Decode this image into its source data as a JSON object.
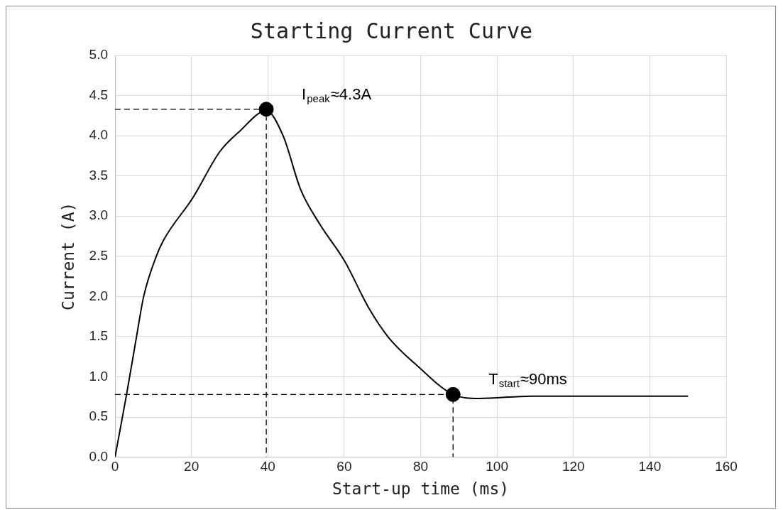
{
  "chart_data": {
    "type": "line",
    "title": "Starting Current Curve",
    "xlabel": "Start-up time (ms)",
    "ylabel": "Current (A)",
    "xlim": [
      0,
      160
    ],
    "xticks": [
      0,
      20,
      40,
      60,
      80,
      100,
      120,
      140,
      160
    ],
    "ylim": [
      0,
      5
    ],
    "yticks": [
      {
        "value": 0,
        "label": "0.0"
      },
      {
        "value": 0.5,
        "label": "0.5"
      },
      {
        "value": 1,
        "label": "1.0"
      },
      {
        "value": 1.5,
        "label": "1.5"
      },
      {
        "value": 2,
        "label": "2.0"
      },
      {
        "value": 2.5,
        "label": "2.5"
      },
      {
        "value": 3,
        "label": "3.0"
      },
      {
        "value": 3.5,
        "label": "3.5"
      },
      {
        "value": 4,
        "label": "4.0"
      },
      {
        "value": 4.5,
        "label": "4.5"
      },
      {
        "value": 5,
        "label": "5.0"
      }
    ],
    "grid": true,
    "legend": false,
    "marker": "none",
    "line_style": "solid",
    "series": [
      {
        "color": "#000000",
        "x": [
          0,
          3.1,
          5.6,
          7.5,
          10.8,
          12.7,
          20.4,
          27.4,
          32.5,
          39.6,
          44,
          48.6,
          53.6,
          60.1,
          66.5,
          71.6,
          79.3,
          88.5,
          95.3,
          109,
          150
        ],
        "values": [
          0,
          0.8,
          1.49,
          2.0,
          2.5,
          2.7,
          3.23,
          3.8,
          4.05,
          4.31,
          4.0,
          3.33,
          2.9,
          2.44,
          1.85,
          1.49,
          1.13,
          0.78,
          0.73,
          0.76,
          0.76
        ]
      },
      {
        "line_style": "dashed",
        "color": "#000000",
        "x": [
          0,
          39.6,
          39.6
        ],
        "values": [
          4.33,
          4.33,
          0
        ]
      },
      {
        "line_style": "dashed",
        "color": "#000000",
        "x": [
          0,
          88.5,
          88.5
        ],
        "values": [
          0.78,
          0.78,
          0
        ]
      },
      {
        "type": "scatter",
        "marker": "circle",
        "color": "#000000",
        "x": [
          39.6,
          88.5
        ],
        "values": [
          4.33,
          0.78
        ]
      }
    ],
    "annotations": [
      {
        "text": "I$_{peak}$≈4.3A",
        "x": 39.6,
        "y": 4.33
      },
      {
        "text": "T$_{start}$≈90ms",
        "x": 88.5,
        "y": 0.78
      }
    ]
  }
}
